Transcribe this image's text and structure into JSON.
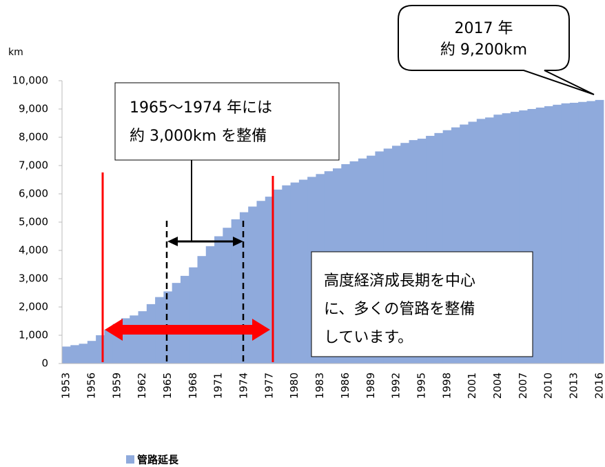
{
  "chart_data": {
    "type": "bar",
    "unit_label": "km",
    "categories": [
      "1953",
      null,
      null,
      "1956",
      null,
      null,
      "1959",
      null,
      null,
      "1962",
      null,
      null,
      "1965",
      null,
      null,
      "1968",
      null,
      null,
      "1971",
      null,
      null,
      "1974",
      null,
      null,
      "1977",
      null,
      null,
      "1980",
      null,
      null,
      "1983",
      null,
      null,
      "1986",
      null,
      null,
      "1989",
      null,
      null,
      "1992",
      null,
      null,
      "1995",
      null,
      null,
      "1998",
      null,
      null,
      "2001",
      null,
      null,
      "2004",
      null,
      null,
      "2007",
      null,
      null,
      "2010",
      null,
      null,
      "2013",
      null,
      null,
      "2016"
    ],
    "series": [
      {
        "name": "管路延長",
        "color": "#8faadc",
        "values": [
          600,
          650,
          700,
          800,
          1000,
          1200,
          1400,
          1600,
          1700,
          1850,
          2100,
          2350,
          2550,
          2850,
          3100,
          3400,
          3800,
          4150,
          4500,
          4800,
          5100,
          5350,
          5550,
          5750,
          5900,
          6150,
          6300,
          6400,
          6500,
          6600,
          6700,
          6800,
          6900,
          7050,
          7150,
          7250,
          7350,
          7500,
          7600,
          7700,
          7800,
          7900,
          7950,
          8050,
          8150,
          8250,
          8350,
          8450,
          8550,
          8650,
          8700,
          8800,
          8850,
          8900,
          8950,
          9000,
          9050,
          9100,
          9150,
          9200,
          9220,
          9250,
          9280,
          9320
        ]
      }
    ],
    "ylim": [
      0,
      10000
    ],
    "yticks": [
      0,
      {
        "value": 1000,
        "label": "1,000"
      },
      {
        "value": 2000,
        "label": "2,000"
      },
      {
        "value": 3000,
        "label": "3,000"
      },
      {
        "value": 4000,
        "label": "4,000"
      },
      {
        "value": 5000,
        "label": "5,000"
      },
      {
        "value": 6000,
        "label": "6,000"
      },
      {
        "value": 7000,
        "label": "7,000"
      },
      {
        "value": 8000,
        "label": "8,000"
      },
      {
        "value": 9000,
        "label": "9,000"
      },
      {
        "value": 10000,
        "label": "10,000"
      }
    ],
    "annotations": [
      [
        "2017 年",
        "約 9,200km"
      ],
      [
        "1965～1974 年には",
        "約 3,000km を整備"
      ],
      [
        "高度経済成長期を中心",
        "に、多くの管路を整備",
        "しています。"
      ]
    ]
  }
}
